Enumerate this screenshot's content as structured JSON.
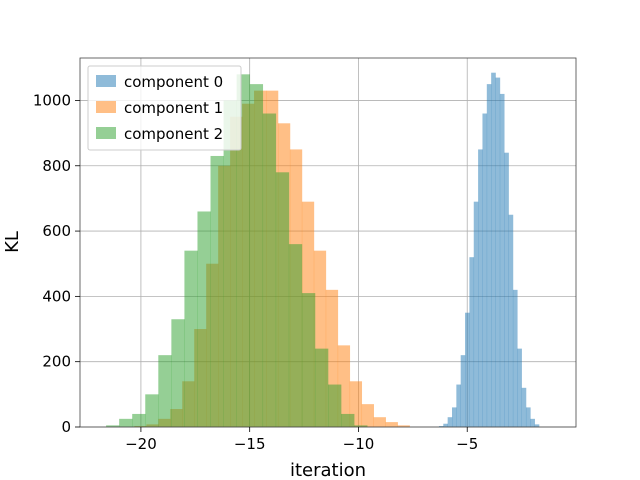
{
  "chart_data": {
    "type": "histogram",
    "xlabel": "iteration",
    "ylabel": "KL",
    "xlim": [
      -22.8,
      0.0
    ],
    "ylim": [
      0,
      1130
    ],
    "xticks": [
      -20,
      -15,
      -10,
      -5
    ],
    "xtick_labels": [
      "−20",
      "−15",
      "−10",
      "−5"
    ],
    "yticks": [
      0,
      200,
      400,
      600,
      800,
      1000
    ],
    "ytick_labels": [
      "0",
      "200",
      "400",
      "600",
      "800",
      "1000"
    ],
    "grid": true,
    "legend_position": "upper-left",
    "series": [
      {
        "name": "component 0",
        "color": "#1f77b4",
        "opacity": 0.5,
        "bin_start": -6.3,
        "bin_width": 0.2,
        "counts": [
          3,
          10,
          30,
          60,
          130,
          220,
          350,
          520,
          690,
          850,
          960,
          1050,
          1085,
          1070,
          1020,
          840,
          650,
          420,
          240,
          120,
          60,
          25,
          8
        ]
      },
      {
        "name": "component 1",
        "color": "#ff7f0e",
        "opacity": 0.5,
        "bin_start": -20.3,
        "bin_width": 0.55,
        "counts": [
          3,
          8,
          25,
          55,
          140,
          300,
          500,
          800,
          950,
          990,
          1030,
          1030,
          930,
          850,
          690,
          540,
          420,
          250,
          140,
          70,
          30,
          15,
          5
        ]
      },
      {
        "name": "component 2",
        "color": "#2ca02c",
        "opacity": 0.5,
        "bin_start": -21.6,
        "bin_width": 0.6,
        "counts": [
          5,
          25,
          40,
          100,
          220,
          330,
          540,
          660,
          830,
          1000,
          1080,
          1050,
          960,
          780,
          560,
          410,
          240,
          130,
          40,
          5
        ]
      }
    ]
  }
}
